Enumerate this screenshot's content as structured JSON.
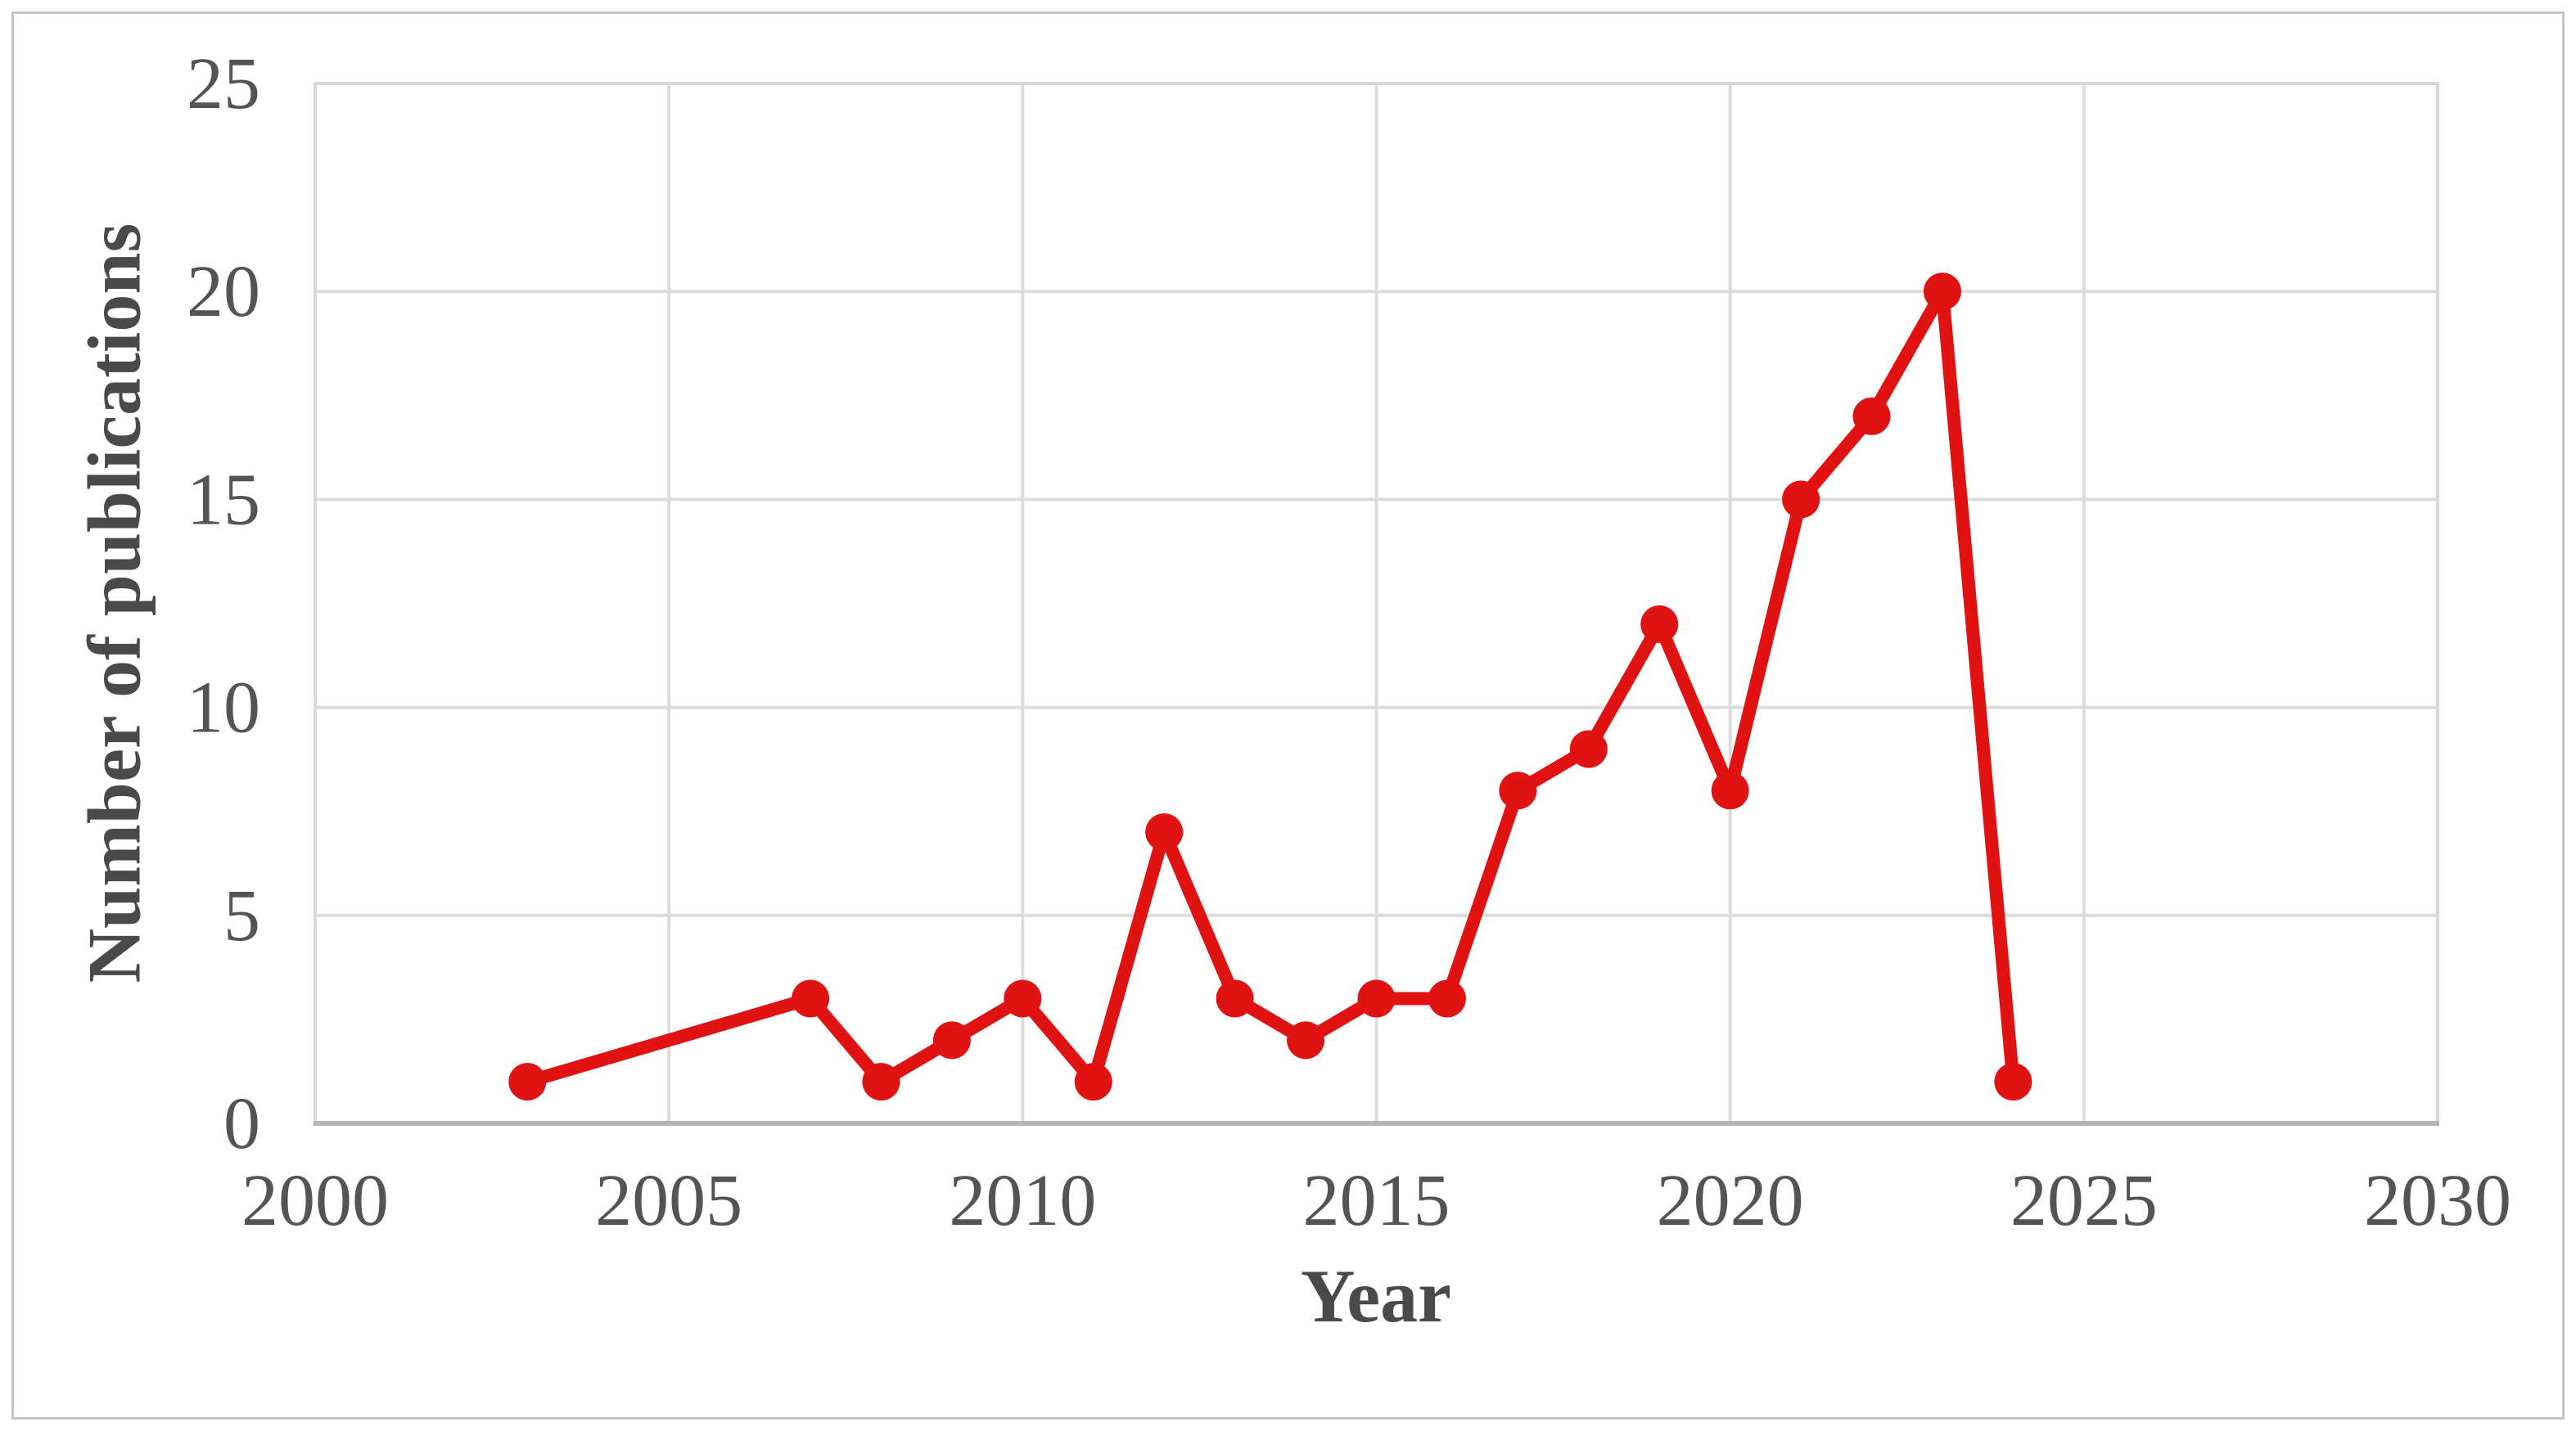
{
  "figure": {
    "background": "#ffffff",
    "frame_color": "#c4c4c4"
  },
  "chart_data": {
    "type": "line",
    "title": "",
    "xlabel": "Year",
    "ylabel": "Number of publications",
    "series": [
      {
        "name": "Number of publications",
        "color": "#e01212",
        "x": [
          2003,
          2007,
          2008,
          2009,
          2010,
          2011,
          2012,
          2013,
          2014,
          2015,
          2016,
          2017,
          2018,
          2019,
          2020,
          2021,
          2022,
          2023,
          2024
        ],
        "y": [
          1,
          3,
          1,
          2,
          3,
          1,
          7,
          3,
          2,
          3,
          3,
          8,
          9,
          12,
          8,
          15,
          17,
          20,
          1
        ]
      }
    ],
    "xlim": [
      2000,
      2030
    ],
    "ylim": [
      0,
      25
    ],
    "x_ticks": [
      2000,
      2005,
      2010,
      2015,
      2020,
      2025,
      2030
    ],
    "y_ticks": [
      0,
      5,
      10,
      15,
      20,
      25
    ],
    "grid": true,
    "legend": "none",
    "grid_color": "#dcdcdc",
    "plot_border_color": "#d9d9d9",
    "axis_line_color": "#b5b5b5",
    "tick_label_color": "#545454",
    "axis_title_color": "#4a4a4a",
    "marker": "circle",
    "marker_radius": 23,
    "line_width": 16
  }
}
